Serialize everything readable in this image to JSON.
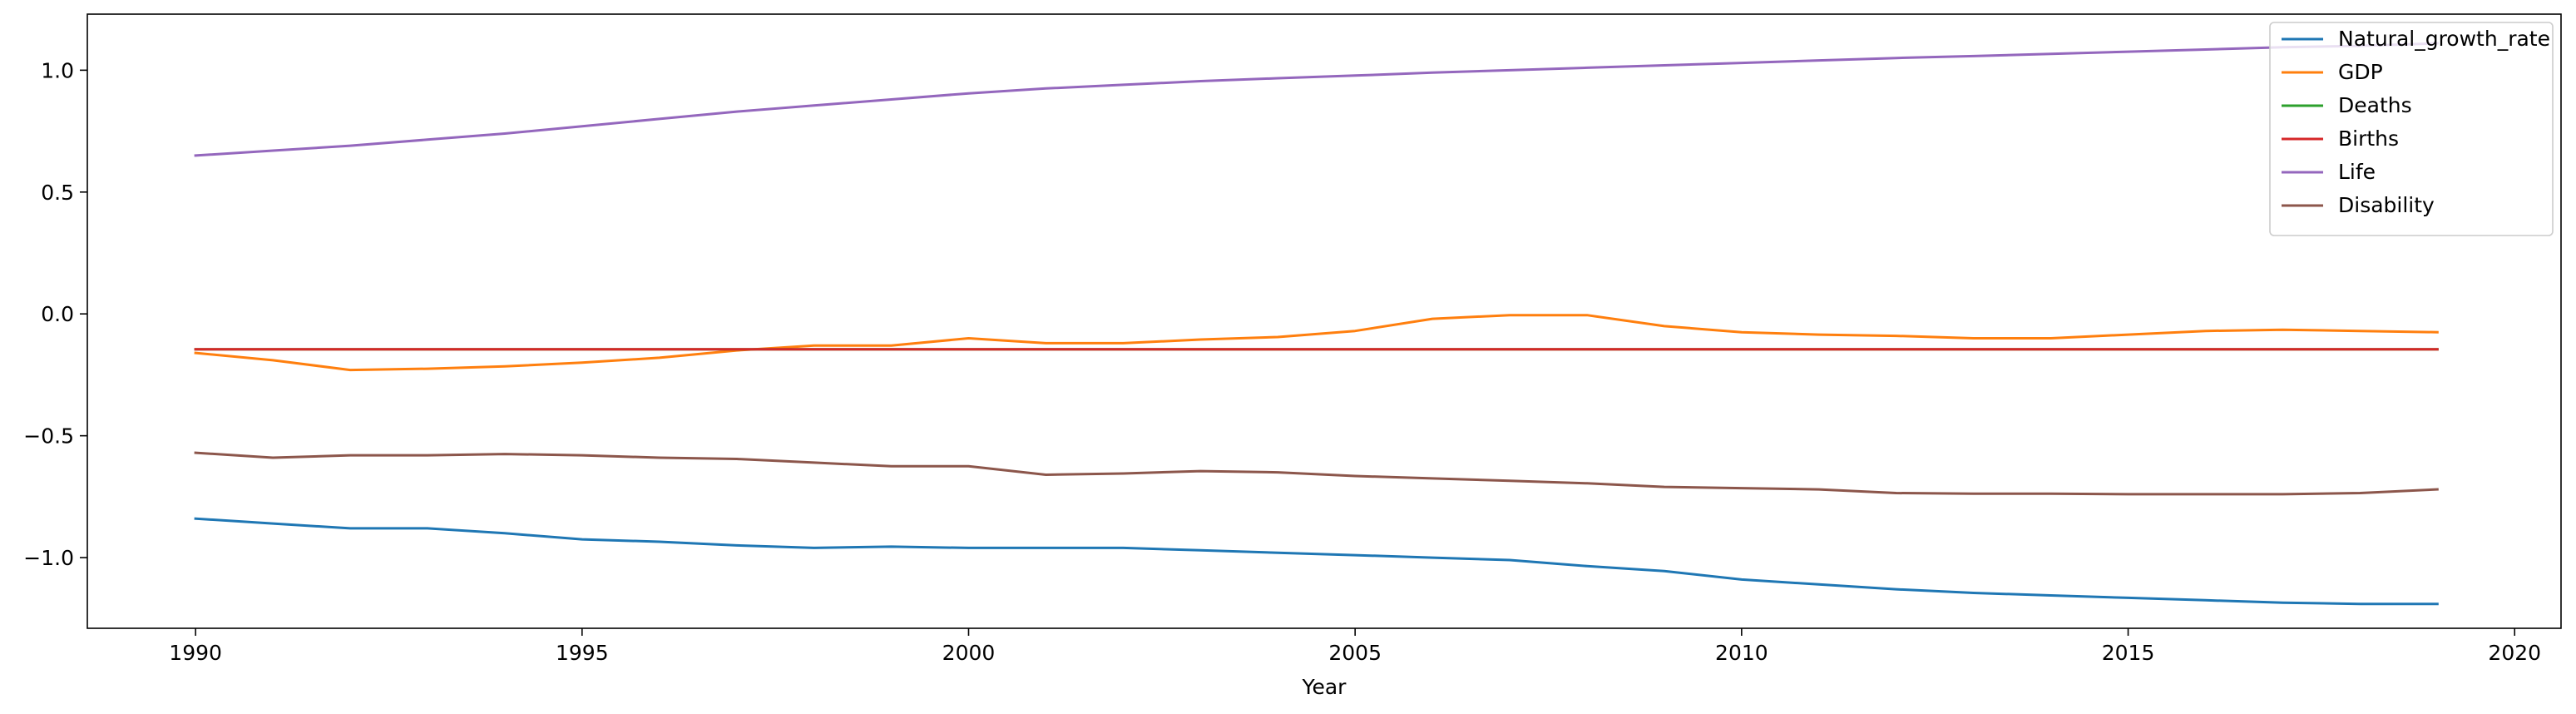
{
  "chart_data": {
    "type": "line",
    "title": "",
    "xlabel": "Year",
    "ylabel": "",
    "xlim": [
      1988.6,
      2020.6
    ],
    "ylim": [
      -1.29,
      1.23
    ],
    "xticks": [
      1990,
      1995,
      2000,
      2005,
      2010,
      2015,
      2020
    ],
    "yticks": [
      -1.0,
      -0.5,
      0.0,
      0.5,
      1.0
    ],
    "ytick_labels": [
      "−1.0",
      "−0.5",
      "0.0",
      "0.5",
      "1.0"
    ],
    "grid": false,
    "legend_position": "top-right",
    "x": [
      1990,
      1991,
      1992,
      1993,
      1994,
      1995,
      1996,
      1997,
      1998,
      1999,
      2000,
      2001,
      2002,
      2003,
      2004,
      2005,
      2006,
      2007,
      2008,
      2009,
      2010,
      2011,
      2012,
      2013,
      2014,
      2015,
      2016,
      2017,
      2018,
      2019
    ],
    "series": [
      {
        "name": "Natural_growth_rate",
        "color": "#1f77b4",
        "values": [
          -0.84,
          -0.86,
          -0.88,
          -0.88,
          -0.9,
          -0.925,
          -0.935,
          -0.95,
          -0.96,
          -0.955,
          -0.96,
          -0.96,
          -0.96,
          -0.97,
          -0.98,
          -0.99,
          -1.0,
          -1.01,
          -1.035,
          -1.055,
          -1.09,
          -1.11,
          -1.13,
          -1.145,
          -1.155,
          -1.165,
          -1.175,
          -1.185,
          -1.19,
          -1.19
        ]
      },
      {
        "name": "GDP",
        "color": "#ff7f0e",
        "values": [
          -0.16,
          -0.19,
          -0.23,
          -0.225,
          -0.215,
          -0.2,
          -0.18,
          -0.15,
          -0.13,
          -0.13,
          -0.1,
          -0.12,
          -0.12,
          -0.105,
          -0.095,
          -0.07,
          -0.02,
          -0.005,
          -0.005,
          -0.05,
          -0.075,
          -0.085,
          -0.09,
          -0.1,
          -0.1,
          -0.085,
          -0.07,
          -0.065,
          -0.07,
          -0.075
        ]
      },
      {
        "name": "Deaths",
        "color": "#2ca02c",
        "values": [
          -0.145,
          -0.145,
          -0.145,
          -0.145,
          -0.145,
          -0.145,
          -0.145,
          -0.145,
          -0.145,
          -0.145,
          -0.145,
          -0.145,
          -0.145,
          -0.145,
          -0.145,
          -0.145,
          -0.145,
          -0.145,
          -0.145,
          -0.145,
          -0.145,
          -0.145,
          -0.145,
          -0.145,
          -0.145,
          -0.145,
          -0.145,
          -0.145,
          -0.145,
          -0.145
        ]
      },
      {
        "name": "Births",
        "color": "#d62728",
        "values": [
          -0.145,
          -0.145,
          -0.145,
          -0.145,
          -0.145,
          -0.145,
          -0.145,
          -0.145,
          -0.145,
          -0.145,
          -0.145,
          -0.145,
          -0.145,
          -0.145,
          -0.145,
          -0.145,
          -0.145,
          -0.145,
          -0.145,
          -0.145,
          -0.145,
          -0.145,
          -0.145,
          -0.145,
          -0.145,
          -0.145,
          -0.145,
          -0.145,
          -0.145,
          -0.145
        ]
      },
      {
        "name": "Life",
        "color": "#9467bd",
        "values": [
          0.65,
          0.67,
          0.69,
          0.715,
          0.74,
          0.77,
          0.8,
          0.83,
          0.855,
          0.88,
          0.905,
          0.925,
          0.94,
          0.955,
          0.967,
          0.978,
          0.99,
          1.0,
          1.01,
          1.02,
          1.03,
          1.04,
          1.05,
          1.058,
          1.067,
          1.076,
          1.085,
          1.094,
          1.1,
          1.11
        ]
      },
      {
        "name": "Disability",
        "color": "#8c564b",
        "values": [
          -0.57,
          -0.59,
          -0.58,
          -0.58,
          -0.575,
          -0.58,
          -0.59,
          -0.595,
          -0.61,
          -0.625,
          -0.625,
          -0.66,
          -0.655,
          -0.645,
          -0.65,
          -0.665,
          -0.675,
          -0.685,
          -0.695,
          -0.71,
          -0.715,
          -0.72,
          -0.735,
          -0.738,
          -0.738,
          -0.74,
          -0.74,
          -0.74,
          -0.735,
          -0.72
        ]
      }
    ]
  }
}
